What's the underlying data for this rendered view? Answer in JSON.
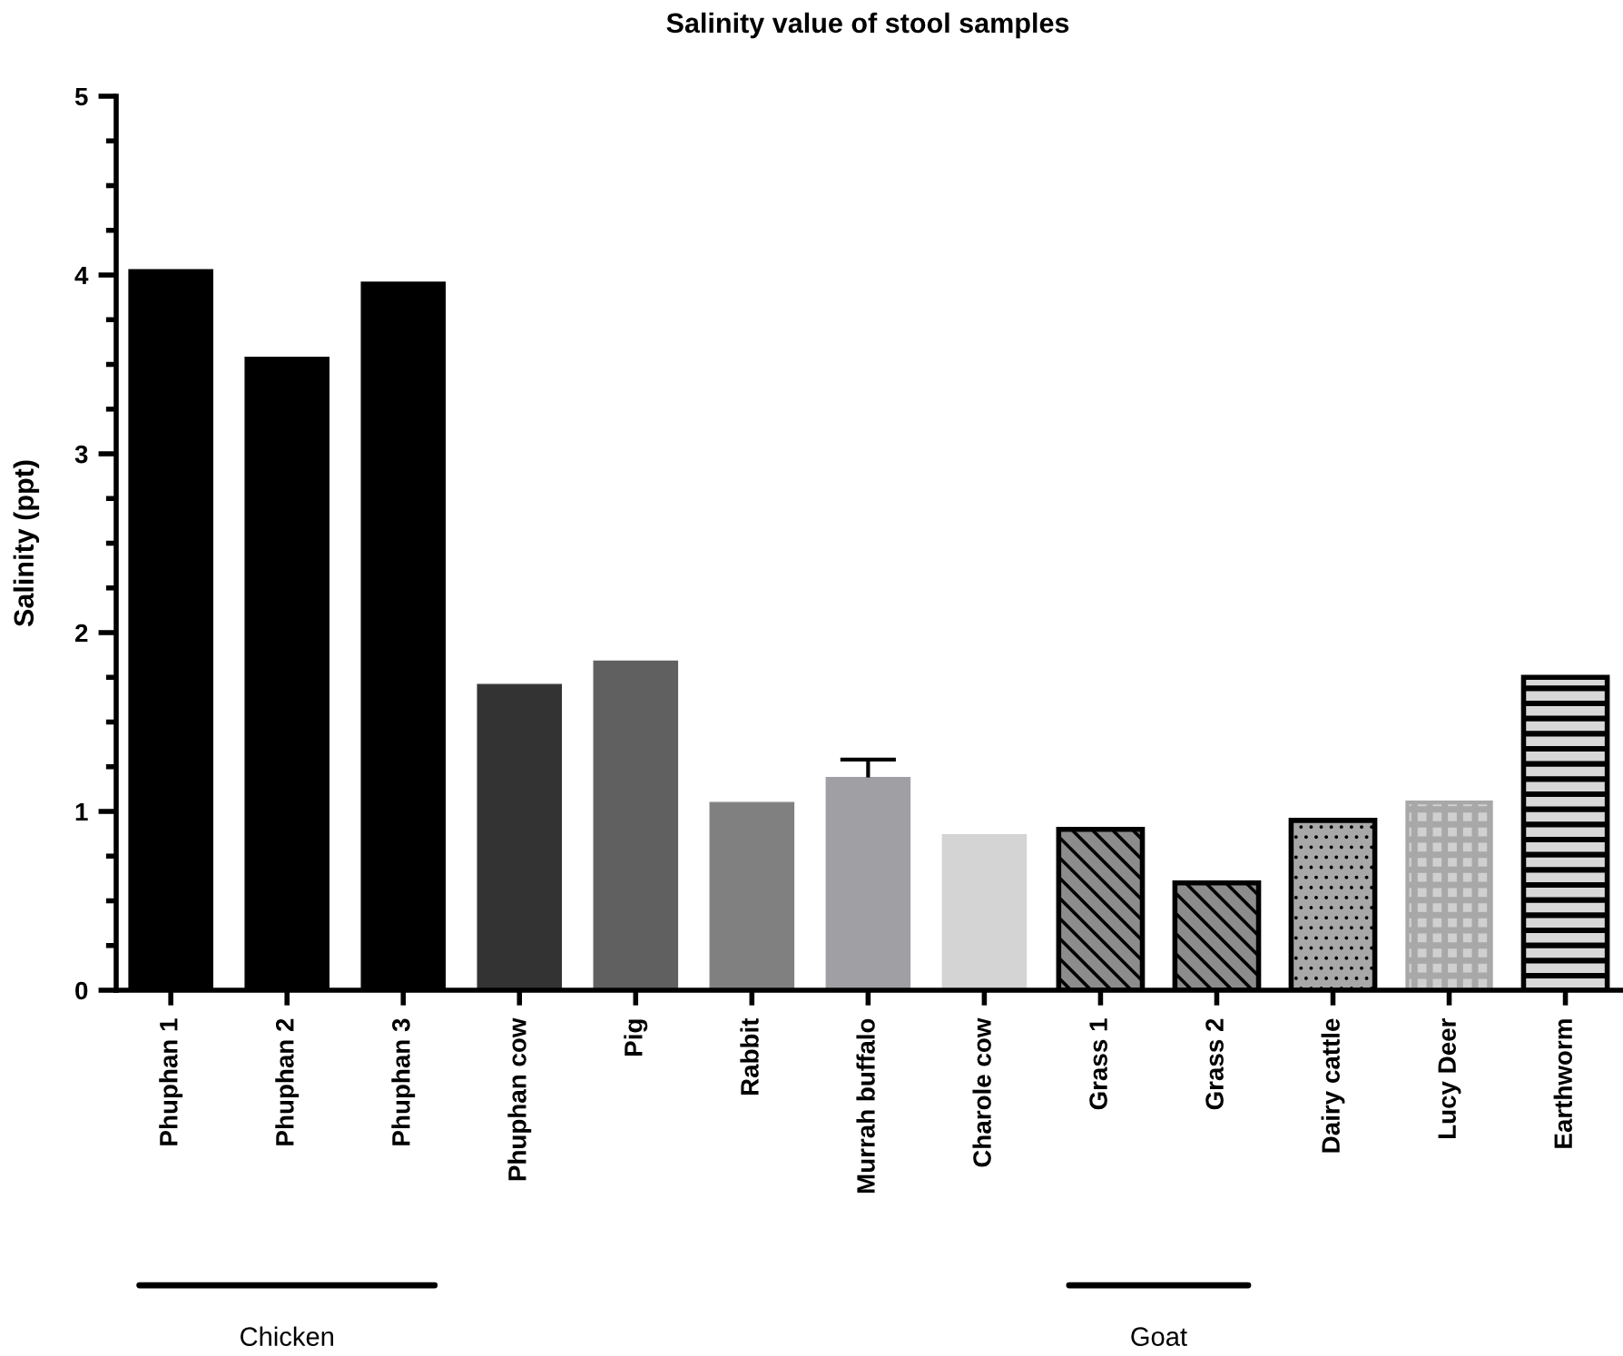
{
  "chart_data": {
    "type": "bar",
    "title": "Salinity value of stool samples",
    "ylabel": "Salinity (ppt)",
    "categories": [
      "Phuphan 1",
      "Phuphan 2",
      "Phuphan 3",
      "Phuphan cow",
      "Pig",
      "Rabbit",
      "Murrah buffalo",
      "Charole cow",
      "Grass 1",
      "Grass 2",
      "Dairy cattle",
      "Lucy Deer",
      "Earthworm"
    ],
    "values": [
      4.03,
      3.54,
      3.96,
      1.71,
      1.84,
      1.05,
      1.19,
      0.87,
      0.9,
      0.6,
      0.95,
      1.05,
      1.75
    ],
    "colors": [
      "#000000",
      "#000000",
      "#000000",
      "#333333",
      "#606060",
      "#808080",
      "#a0a0a4",
      "#d4d4d4",
      "#8c8c8c",
      "#8c8c8c",
      "#a8a8a8",
      "#d0d0d0",
      "#d8d8d8"
    ],
    "errors": [
      null,
      null,
      null,
      null,
      null,
      null,
      [
        1.19,
        1.29
      ],
      null,
      null,
      null,
      null,
      null,
      null
    ],
    "ylim": [
      0,
      5
    ],
    "yticks": [
      0,
      {
        "value": 0.25,
        "label": null
      },
      {
        "value": 0.5,
        "label": null
      },
      {
        "value": 0.75,
        "label": null
      },
      1,
      {
        "value": 1.25,
        "label": null
      },
      {
        "value": 1.5,
        "label": null
      },
      {
        "value": 1.75,
        "label": null
      },
      2,
      {
        "value": 2.25,
        "label": null
      },
      {
        "value": 2.5,
        "label": null
      },
      {
        "value": 2.75,
        "label": null
      },
      3,
      {
        "value": 3.25,
        "label": null
      },
      {
        "value": 3.5,
        "label": null
      },
      {
        "value": 3.75,
        "label": null
      },
      4,
      {
        "value": 4.25,
        "label": null
      },
      {
        "value": 4.5,
        "label": null
      },
      {
        "value": 4.75,
        "label": null
      },
      5
    ],
    "grid": false,
    "annotations": [
      "Chicken",
      "Goat"
    ]
  }
}
